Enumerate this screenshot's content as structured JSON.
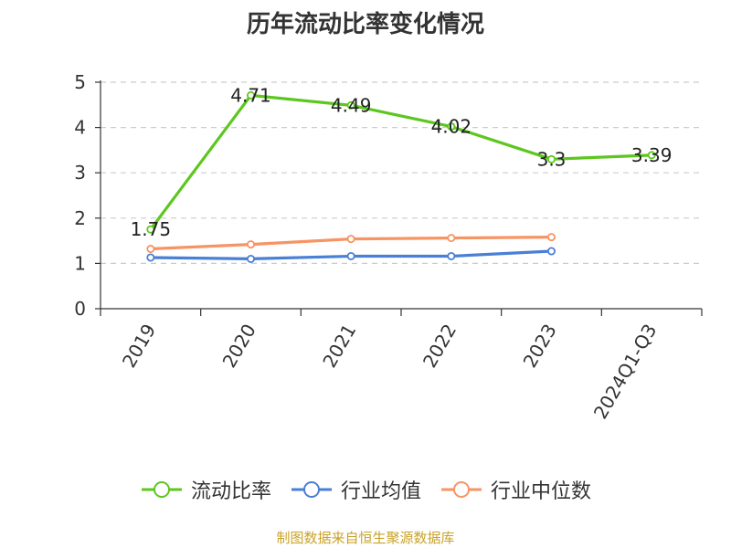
{
  "chart_data": {
    "type": "line",
    "title": "历年流动比率变化情况",
    "categories": [
      "2019",
      "2020",
      "2021",
      "2022",
      "2023",
      "2024Q1-Q3"
    ],
    "ylim": [
      0,
      5
    ],
    "yticks": [
      0,
      1,
      2,
      3,
      4,
      5
    ],
    "grid": true,
    "legend_position": "bottom",
    "series": [
      {
        "name": "流动比率",
        "color": "#5cc71e",
        "values": [
          1.75,
          4.71,
          4.49,
          4.02,
          3.3,
          3.39
        ],
        "labels": [
          "1.75",
          "4.71",
          "4.49",
          "4.02",
          "3.3",
          "3.39"
        ],
        "show_labels": true
      },
      {
        "name": "行业均值",
        "color": "#4a7fd6",
        "values": [
          1.13,
          1.1,
          1.16,
          1.16,
          1.27,
          null
        ],
        "show_labels": false
      },
      {
        "name": "行业中位数",
        "color": "#f79463",
        "values": [
          1.32,
          1.42,
          1.54,
          1.56,
          1.58,
          null
        ],
        "show_labels": false
      }
    ]
  },
  "source_text": "制图数据来自恒生聚源数据库"
}
